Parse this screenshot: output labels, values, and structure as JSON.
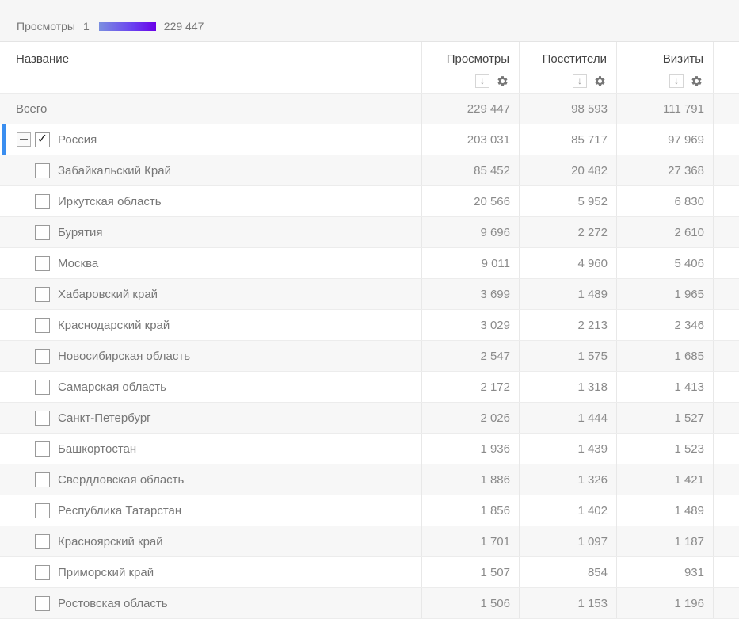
{
  "legend": {
    "metric": "Просмотры",
    "min": "1",
    "max": "229 447"
  },
  "columns": {
    "name": "Название",
    "views": "Просмотры",
    "visitors": "Посетители",
    "visits": "Визиты",
    "sort_icon": "↓"
  },
  "total": {
    "label": "Всего",
    "views": "229 447",
    "visitors": "98 593",
    "visits": "111 791"
  },
  "parent": {
    "label": "Россия",
    "checked": "✓",
    "views": "203 031",
    "visitors": "85 717",
    "visits": "97 969"
  },
  "rows": [
    {
      "label": "Забайкальский Край",
      "views": "85 452",
      "visitors": "20 482",
      "visits": "27 368"
    },
    {
      "label": "Иркутская область",
      "views": "20 566",
      "visitors": "5 952",
      "visits": "6 830"
    },
    {
      "label": "Бурятия",
      "views": "9 696",
      "visitors": "2 272",
      "visits": "2 610"
    },
    {
      "label": "Москва",
      "views": "9 011",
      "visitors": "4 960",
      "visits": "5 406"
    },
    {
      "label": "Хабаровский край",
      "views": "3 699",
      "visitors": "1 489",
      "visits": "1 965"
    },
    {
      "label": "Краснодарский край",
      "views": "3 029",
      "visitors": "2 213",
      "visits": "2 346"
    },
    {
      "label": "Новосибирская область",
      "views": "2 547",
      "visitors": "1 575",
      "visits": "1 685"
    },
    {
      "label": "Самарская область",
      "views": "2 172",
      "visitors": "1 318",
      "visits": "1 413"
    },
    {
      "label": "Санкт-Петербург",
      "views": "2 026",
      "visitors": "1 444",
      "visits": "1 527"
    },
    {
      "label": "Башкортостан",
      "views": "1 936",
      "visitors": "1 439",
      "visits": "1 523"
    },
    {
      "label": "Свердловская область",
      "views": "1 886",
      "visitors": "1 326",
      "visits": "1 421"
    },
    {
      "label": "Республика Татарстан",
      "views": "1 856",
      "visitors": "1 402",
      "visits": "1 489"
    },
    {
      "label": "Красноярский край",
      "views": "1 701",
      "visitors": "1 097",
      "visits": "1 187"
    },
    {
      "label": "Приморский край",
      "views": "1 507",
      "visitors": "854",
      "visits": "931"
    },
    {
      "label": "Ростовская область",
      "views": "1 506",
      "visitors": "1 153",
      "visits": "1 196"
    }
  ],
  "colors": {
    "accent": "#3a8ef0",
    "gradient_start": "#7b8fe0",
    "gradient_end": "#6a00e8"
  },
  "icons": {
    "sort": "arrow-down-icon",
    "settings": "gear-icon",
    "collapse": "minus-icon",
    "check": "checkmark-icon"
  }
}
